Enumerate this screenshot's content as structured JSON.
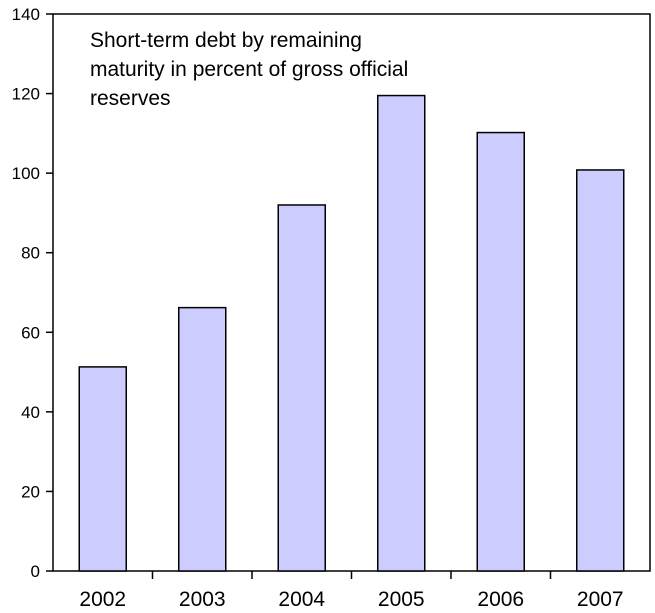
{
  "chart_data": {
    "type": "bar",
    "categories": [
      "2002",
      "2003",
      "2004",
      "2005",
      "2006",
      "2007"
    ],
    "values": [
      51.3,
      66.2,
      92,
      119.5,
      110.2,
      100.8
    ],
    "ylim": [
      0,
      140
    ],
    "yticks": [
      "0",
      "20",
      "40",
      "60",
      "80",
      "100",
      "120",
      "140"
    ],
    "grid": false,
    "bar_color": "#ccccff",
    "bar_edge_color": "#000000",
    "annotation": {
      "lines": [
        "Short-term debt by remaining",
        "maturity in percent of gross official",
        "reserves"
      ]
    }
  }
}
